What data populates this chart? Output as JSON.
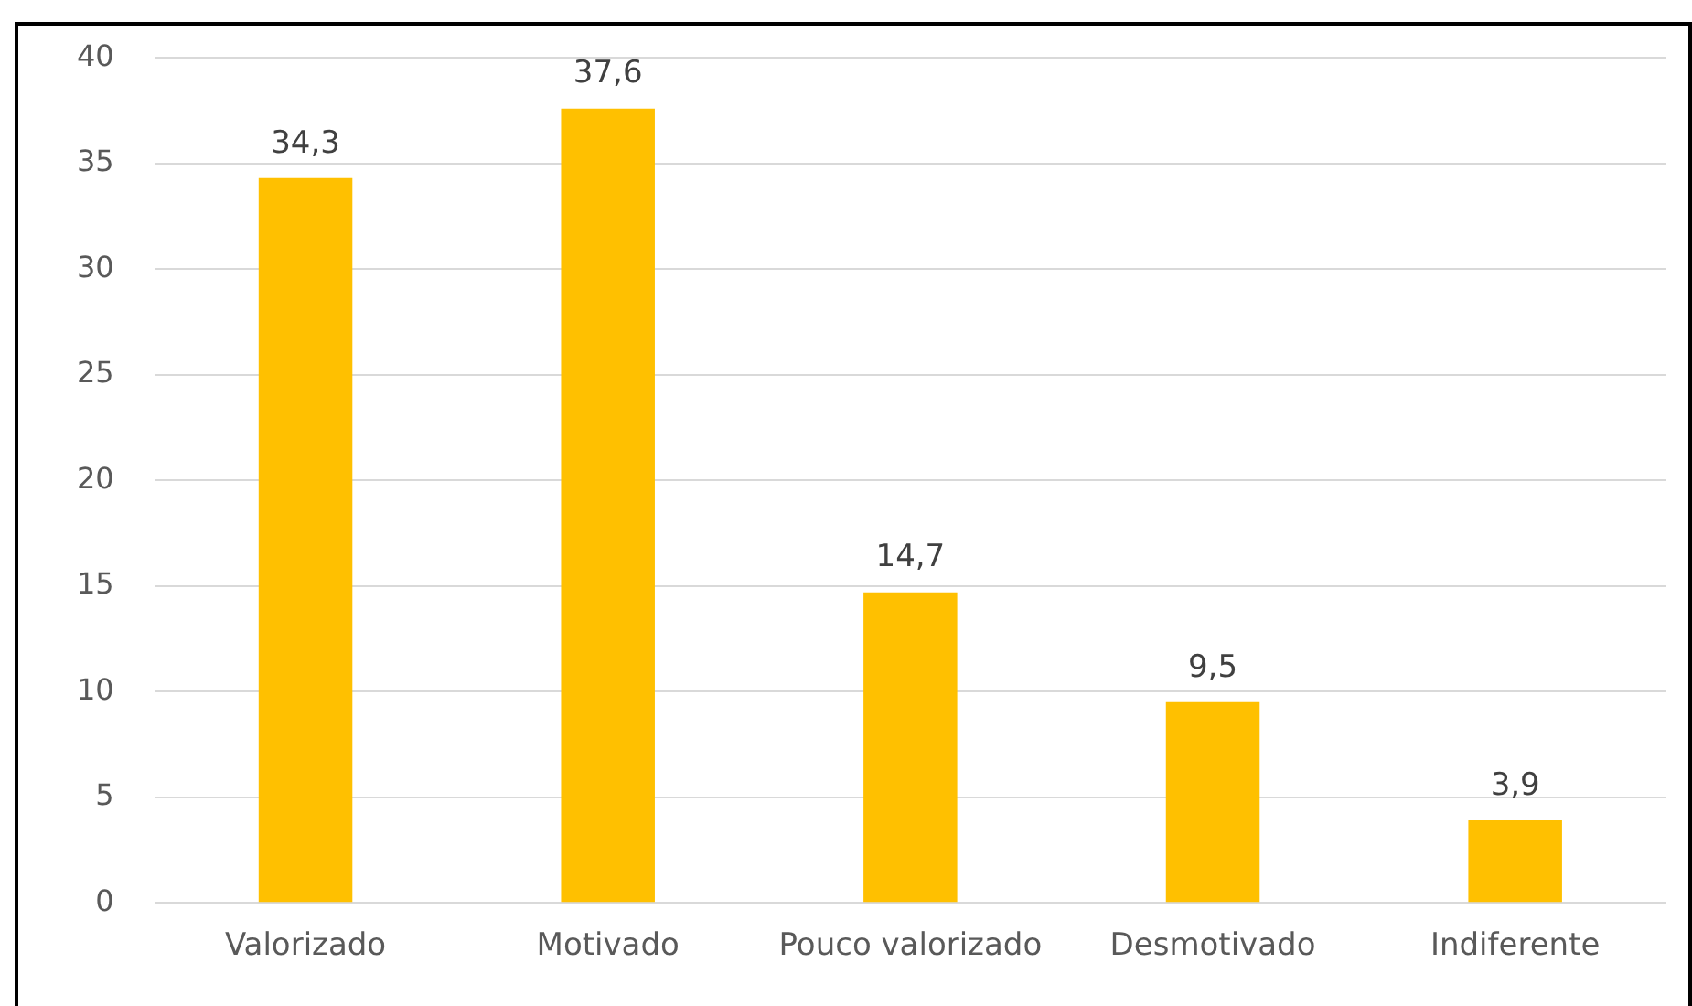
{
  "chart_data": {
    "type": "bar",
    "categories": [
      "Valorizado",
      "Motivado",
      "Pouco valorizado",
      "Desmotivado",
      "Indiferente"
    ],
    "values": [
      34.3,
      37.6,
      14.7,
      9.5,
      3.9
    ],
    "value_labels": [
      "34,3",
      "37,6",
      "14,7",
      "9,5",
      "3,9"
    ],
    "color": "#ffc000",
    "ylim": [
      0,
      40
    ],
    "yticks": [
      0,
      5,
      10,
      15,
      20,
      25,
      30,
      35,
      40
    ],
    "grid": "y",
    "legend": false
  }
}
